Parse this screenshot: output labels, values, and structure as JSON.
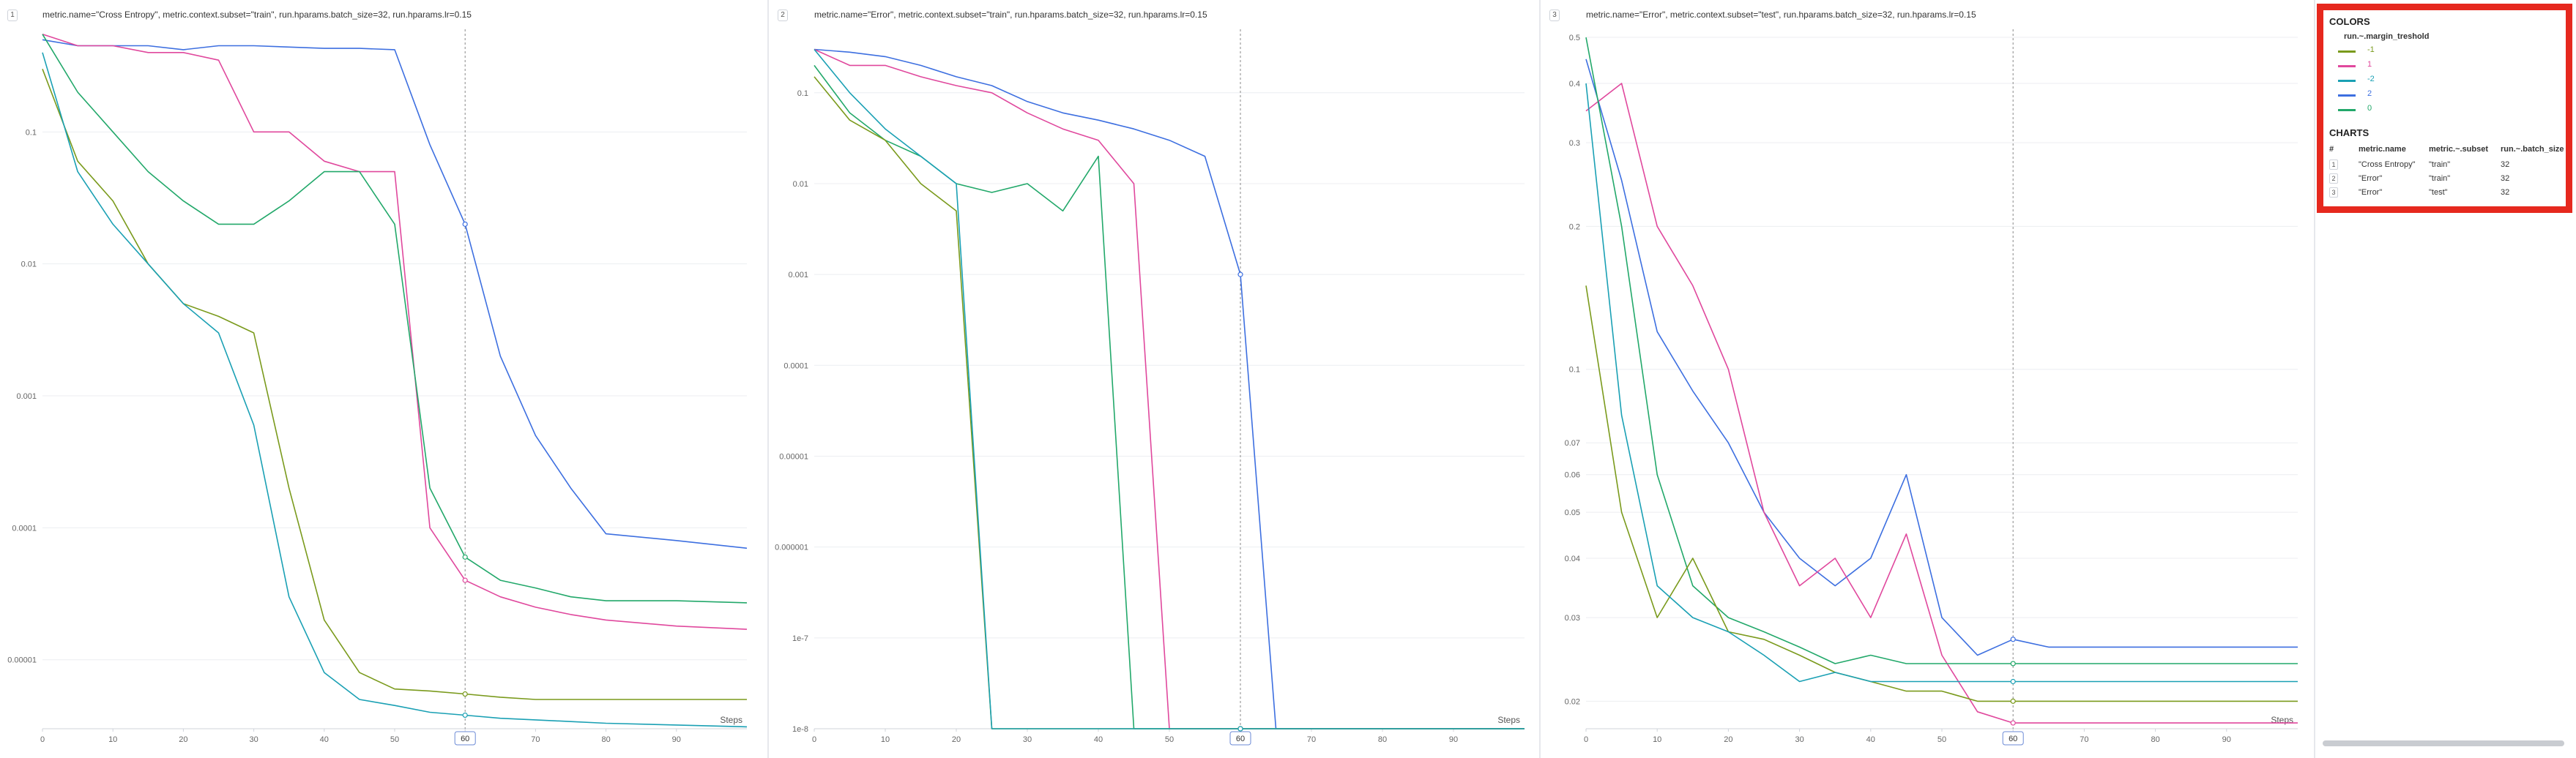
{
  "panels": [
    {
      "id": "1",
      "title": "metric.name=\"Cross Entropy\", metric.context.subset=\"train\", run.hparams.batch_size=32, run.hparams.lr=0.15",
      "x_label": "Steps",
      "x_ticks": [
        0,
        10,
        20,
        30,
        40,
        50,
        60,
        70,
        80,
        90
      ],
      "y_ticks": [
        "0.1",
        "0.01",
        "0.001",
        "0.0001",
        "0.00001"
      ]
    },
    {
      "id": "2",
      "title": "metric.name=\"Error\", metric.context.subset=\"train\", run.hparams.batch_size=32, run.hparams.lr=0.15",
      "x_label": "Steps",
      "x_ticks": [
        0,
        10,
        20,
        30,
        40,
        50,
        60,
        70,
        80,
        90
      ],
      "y_ticks": [
        "0.1",
        "0.01",
        "0.001",
        "0.0001",
        "0.00001",
        "0.000001",
        "1e-7",
        "1e-8"
      ]
    },
    {
      "id": "3",
      "title": "metric.name=\"Error\", metric.context.subset=\"test\", run.hparams.batch_size=32, run.hparams.lr=0.15",
      "x_label": "Steps",
      "x_ticks": [
        0,
        10,
        20,
        30,
        40,
        50,
        60,
        70,
        80,
        90
      ],
      "y_ticks": [
        "0.5",
        "0.4",
        "0.3",
        "0.2",
        "0.1",
        "0.07",
        "0.06",
        "0.05",
        "0.04",
        "0.03",
        "0.02"
      ]
    }
  ],
  "cursor_step": "60",
  "legend": {
    "colors_title": "COLORS",
    "colors_header": "run.~.margin_treshold",
    "items": [
      {
        "label": "-1",
        "color": "#7a9a1c"
      },
      {
        "label": "1",
        "color": "#e0489d"
      },
      {
        "label": "-2",
        "color": "#1aa0b4"
      },
      {
        "label": "2",
        "color": "#3d6fe0"
      },
      {
        "label": "0",
        "color": "#22a86a"
      }
    ],
    "charts_title": "CHARTS",
    "charts_headers": [
      "#",
      "metric.name",
      "metric.~.subset",
      "run.~.batch_size"
    ],
    "charts_rows": [
      [
        "1",
        "\"Cross Entropy\"",
        "\"train\"",
        "32"
      ],
      [
        "2",
        "\"Error\"",
        "\"train\"",
        "32"
      ],
      [
        "3",
        "\"Error\"",
        "\"test\"",
        "32"
      ]
    ]
  },
  "chart_data": [
    {
      "type": "line",
      "title": "metric.name=\"Cross Entropy\", metric.context.subset=\"train\", run.hparams.batch_size=32, run.hparams.lr=0.15",
      "xlabel": "Steps",
      "y_scale": "log",
      "xlim": [
        0,
        100
      ],
      "ylim": [
        3e-06,
        0.6
      ],
      "x": [
        0,
        5,
        10,
        15,
        20,
        25,
        30,
        35,
        40,
        45,
        50,
        55,
        60,
        65,
        70,
        75,
        80,
        90,
        100
      ],
      "series": [
        {
          "name": "2",
          "color": "#3d6fe0",
          "values": [
            0.5,
            0.45,
            0.45,
            0.45,
            0.42,
            0.45,
            0.45,
            0.44,
            0.43,
            0.43,
            0.42,
            0.08,
            0.02,
            0.002,
            0.0005,
            0.0002,
            9e-05,
            8e-05,
            7e-05
          ]
        },
        {
          "name": "1",
          "color": "#e0489d",
          "values": [
            0.55,
            0.45,
            0.45,
            0.4,
            0.4,
            0.35,
            0.1,
            0.1,
            0.06,
            0.05,
            0.05,
            0.0001,
            4e-05,
            3e-05,
            2.5e-05,
            2.2e-05,
            2e-05,
            1.8e-05,
            1.7e-05
          ]
        },
        {
          "name": "0",
          "color": "#22a86a",
          "values": [
            0.55,
            0.2,
            0.1,
            0.05,
            0.03,
            0.02,
            0.02,
            0.03,
            0.05,
            0.05,
            0.02,
            0.0002,
            6e-05,
            4e-05,
            3.5e-05,
            3e-05,
            2.8e-05,
            2.8e-05,
            2.7e-05
          ]
        },
        {
          "name": "-1",
          "color": "#7a9a1c",
          "values": [
            0.3,
            0.06,
            0.03,
            0.01,
            0.005,
            0.004,
            0.003,
            0.0002,
            2e-05,
            8e-06,
            6e-06,
            5.8e-06,
            5.5e-06,
            5.2e-06,
            5e-06,
            5e-06,
            5e-06,
            5e-06,
            5e-06
          ]
        },
        {
          "name": "-2",
          "color": "#1aa0b4",
          "values": [
            0.4,
            0.05,
            0.02,
            0.01,
            0.005,
            0.003,
            0.0006,
            3e-05,
            8e-06,
            5e-06,
            4.5e-06,
            4e-06,
            3.8e-06,
            3.6e-06,
            3.5e-06,
            3.4e-06,
            3.3e-06,
            3.2e-06,
            3.1e-06
          ]
        }
      ]
    },
    {
      "type": "line",
      "title": "metric.name=\"Error\", metric.context.subset=\"train\", run.hparams.batch_size=32, run.hparams.lr=0.15",
      "xlabel": "Steps",
      "y_scale": "log",
      "xlim": [
        0,
        100
      ],
      "ylim": [
        1e-08,
        0.5
      ],
      "x": [
        0,
        5,
        10,
        15,
        20,
        25,
        30,
        35,
        40,
        45,
        50,
        55,
        60,
        65,
        70,
        80,
        90,
        100
      ],
      "series": [
        {
          "name": "2",
          "color": "#3d6fe0",
          "values": [
            0.3,
            0.28,
            0.25,
            0.2,
            0.15,
            0.12,
            0.08,
            0.06,
            0.05,
            0.04,
            0.03,
            0.02,
            0.001,
            1e-08,
            1e-08,
            1e-08,
            1e-08,
            1e-08
          ]
        },
        {
          "name": "1",
          "color": "#e0489d",
          "values": [
            0.3,
            0.2,
            0.2,
            0.15,
            0.12,
            0.1,
            0.06,
            0.04,
            0.03,
            0.01,
            1e-08,
            1e-08,
            1e-08,
            1e-08,
            1e-08,
            1e-08,
            1e-08,
            1e-08
          ]
        },
        {
          "name": "0",
          "color": "#22a86a",
          "values": [
            0.2,
            0.06,
            0.03,
            0.02,
            0.01,
            0.008,
            0.01,
            0.005,
            0.02,
            1e-08,
            1e-08,
            1e-08,
            1e-08,
            1e-08,
            1e-08,
            1e-08,
            1e-08,
            1e-08
          ]
        },
        {
          "name": "-1",
          "color": "#7a9a1c",
          "values": [
            0.15,
            0.05,
            0.03,
            0.01,
            0.005,
            1e-08,
            1e-08,
            1e-08,
            1e-08,
            1e-08,
            1e-08,
            1e-08,
            1e-08,
            1e-08,
            1e-08,
            1e-08,
            1e-08,
            1e-08
          ]
        },
        {
          "name": "-2",
          "color": "#1aa0b4",
          "values": [
            0.3,
            0.1,
            0.04,
            0.02,
            0.01,
            1e-08,
            1e-08,
            1e-08,
            1e-08,
            1e-08,
            1e-08,
            1e-08,
            1e-08,
            1e-08,
            1e-08,
            1e-08,
            1e-08,
            1e-08
          ]
        }
      ]
    },
    {
      "type": "line",
      "title": "metric.name=\"Error\", metric.context.subset=\"test\", run.hparams.batch_size=32, run.hparams.lr=0.15",
      "xlabel": "Steps",
      "y_scale": "log",
      "xlim": [
        0,
        100
      ],
      "ylim": [
        0.0175,
        0.52
      ],
      "x": [
        0,
        5,
        10,
        15,
        20,
        25,
        30,
        35,
        40,
        45,
        50,
        55,
        60,
        65,
        70,
        80,
        90,
        100
      ],
      "series": [
        {
          "name": "2",
          "color": "#3d6fe0",
          "values": [
            0.45,
            0.25,
            0.12,
            0.09,
            0.07,
            0.05,
            0.04,
            0.035,
            0.04,
            0.06,
            0.03,
            0.025,
            0.027,
            0.026,
            0.026,
            0.026,
            0.026,
            0.026
          ]
        },
        {
          "name": "1",
          "color": "#e0489d",
          "values": [
            0.35,
            0.4,
            0.2,
            0.15,
            0.1,
            0.05,
            0.035,
            0.04,
            0.03,
            0.045,
            0.025,
            0.019,
            0.018,
            0.018,
            0.018,
            0.018,
            0.018,
            0.018
          ]
        },
        {
          "name": "0",
          "color": "#22a86a",
          "values": [
            0.5,
            0.2,
            0.06,
            0.035,
            0.03,
            0.028,
            0.026,
            0.024,
            0.025,
            0.024,
            0.024,
            0.024,
            0.024,
            0.024,
            0.024,
            0.024,
            0.024,
            0.024
          ]
        },
        {
          "name": "-1",
          "color": "#7a9a1c",
          "values": [
            0.15,
            0.05,
            0.03,
            0.04,
            0.028,
            0.027,
            0.025,
            0.023,
            0.022,
            0.021,
            0.021,
            0.02,
            0.02,
            0.02,
            0.02,
            0.02,
            0.02,
            0.02
          ]
        },
        {
          "name": "-2",
          "color": "#1aa0b4",
          "values": [
            0.4,
            0.08,
            0.035,
            0.03,
            0.028,
            0.025,
            0.022,
            0.023,
            0.022,
            0.022,
            0.022,
            0.022,
            0.022,
            0.022,
            0.022,
            0.022,
            0.022,
            0.022
          ]
        }
      ]
    }
  ]
}
